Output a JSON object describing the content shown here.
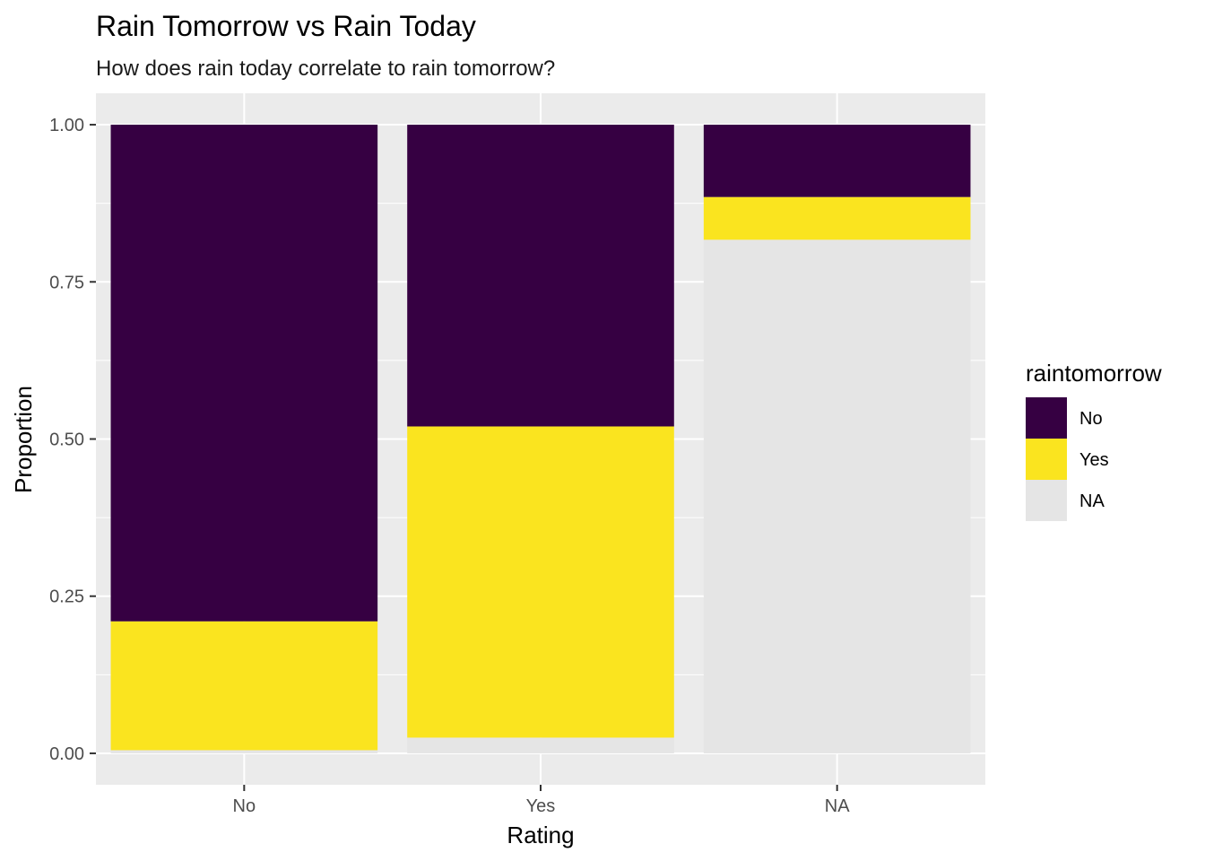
{
  "chart_data": {
    "type": "bar",
    "stacked": true,
    "title": "Rain Tomorrow vs Rain Today",
    "subtitle": "How does rain today correlate to rain tomorrow?",
    "xlabel": "Rating",
    "ylabel": "Proportion",
    "categories": [
      "No",
      "Yes",
      "NA"
    ],
    "ylim": [
      -0.05,
      1.05
    ],
    "yticks": [
      0.0,
      0.25,
      0.5,
      0.75,
      1.0
    ],
    "ytick_labels": [
      "0.00",
      "0.25",
      "0.50",
      "0.75",
      "1.00"
    ],
    "grid": true,
    "legend": {
      "title": "raintomorrow",
      "placement": "right",
      "entries": [
        "No",
        "Yes",
        "NA"
      ]
    },
    "series": [
      {
        "name": "No",
        "color": "#360042",
        "values": [
          0.79,
          0.48,
          0.115
        ]
      },
      {
        "name": "Yes",
        "color": "#fae41f",
        "values": [
          0.205,
          0.495,
          0.068
        ]
      },
      {
        "name": "NA",
        "color": "#e5e5e5",
        "values": [
          0.005,
          0.025,
          0.817
        ]
      }
    ]
  }
}
